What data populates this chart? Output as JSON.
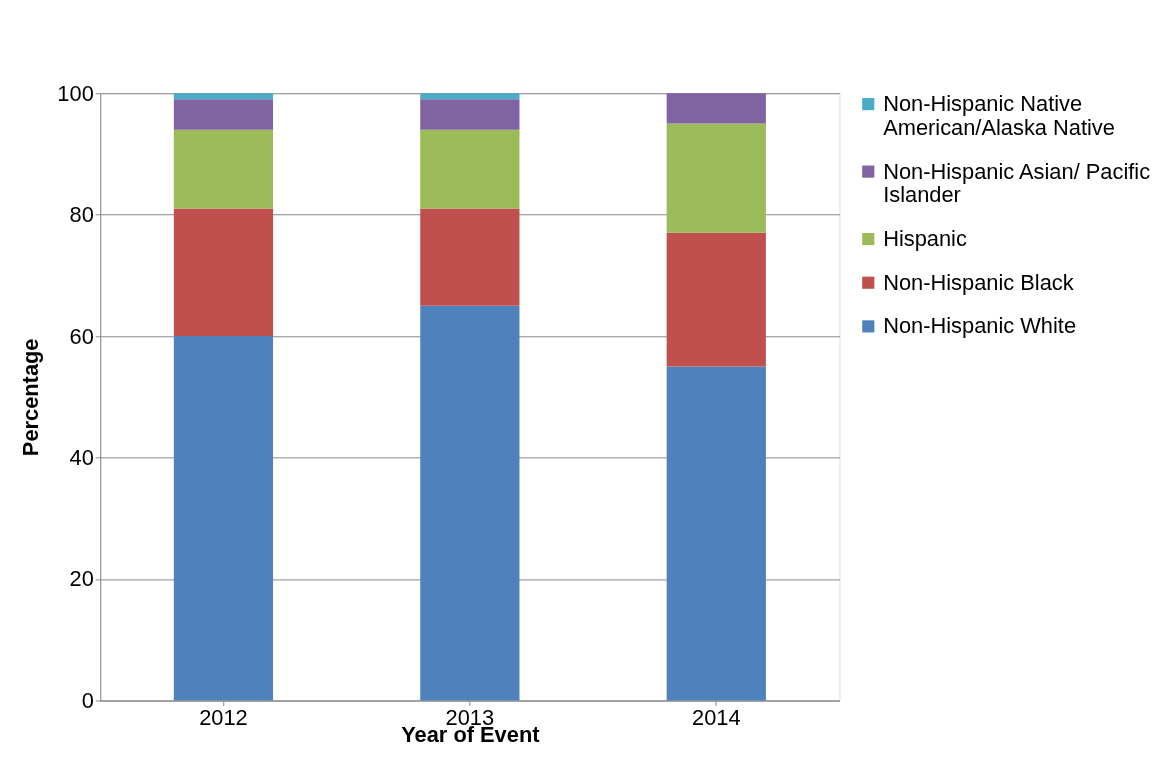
{
  "chart_data": {
    "type": "bar",
    "stacked": true,
    "xlabel": "Year of Event",
    "ylabel": "Percentage",
    "categories": [
      "2012",
      "2013",
      "2014"
    ],
    "series": [
      {
        "name": "Non-Hispanic White",
        "color": "#4f81bd",
        "values": [
          60,
          65,
          55
        ]
      },
      {
        "name": "Non-Hispanic Black",
        "color": "#c0504d",
        "values": [
          21,
          16,
          22
        ]
      },
      {
        "name": "Hispanic",
        "color": "#9bbb59",
        "values": [
          13,
          13,
          18
        ]
      },
      {
        "name": "Non-Hispanic Asian/ Pacific Islander",
        "color": "#8064a2",
        "values": [
          5,
          5,
          5
        ]
      },
      {
        "name": "Non-Hispanic Native American/Alaska Native",
        "color": "#4bacc6",
        "values": [
          1,
          1,
          0
        ]
      }
    ],
    "ylim": [
      0,
      100
    ],
    "yticks": [
      0,
      20,
      40,
      60,
      80,
      100
    ],
    "grid": "y",
    "legend": "right"
  }
}
